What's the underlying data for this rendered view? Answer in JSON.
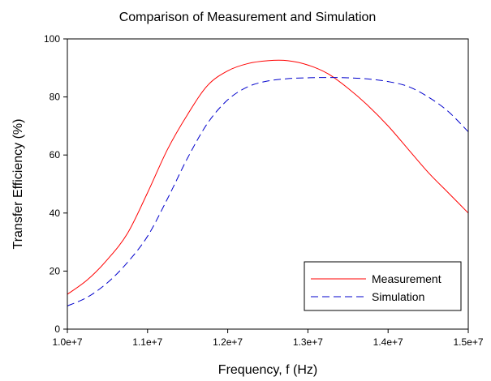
{
  "chart_data": {
    "type": "line",
    "title": "Comparison of Measurement and Simulation",
    "xlabel": "Frequency, f (Hz)",
    "ylabel": "Transfer Efficiency (%)",
    "xlim": [
      10000000,
      15000000
    ],
    "ylim": [
      0,
      100
    ],
    "xticks": [
      10000000,
      11000000,
      12000000,
      13000000,
      14000000,
      15000000
    ],
    "xtick_labels": [
      "1.0e+7",
      "1.1e+7",
      "1.2e+7",
      "1.3e+7",
      "1.4e+7",
      "1.5e+7"
    ],
    "yticks": [
      0,
      20,
      40,
      60,
      80,
      100
    ],
    "ytick_labels": [
      "0",
      "20",
      "40",
      "60",
      "80",
      "100"
    ],
    "grid": false,
    "legend_position": "bottom-right",
    "series": [
      {
        "name": "Measurement",
        "color": "#ff0000",
        "dash": "solid",
        "x": [
          10000000,
          10250000,
          10500000,
          10750000,
          11000000,
          11250000,
          11500000,
          11750000,
          12000000,
          12250000,
          12500000,
          12750000,
          13000000,
          13250000,
          13500000,
          13750000,
          14000000,
          14250000,
          14500000,
          14750000,
          15000000
        ],
        "y": [
          12,
          17,
          24,
          33,
          47,
          62,
          74,
          84,
          89,
          91.5,
          92.5,
          92.5,
          91,
          88,
          83,
          77,
          70,
          62,
          54,
          47,
          40
        ]
      },
      {
        "name": "Simulation",
        "color": "#0000cc",
        "dash": "dashed",
        "x": [
          10000000,
          10250000,
          10500000,
          10750000,
          11000000,
          11250000,
          11500000,
          11750000,
          12000000,
          12250000,
          12500000,
          12750000,
          13000000,
          13250000,
          13500000,
          13750000,
          14000000,
          14250000,
          14500000,
          14750000,
          15000000
        ],
        "y": [
          8,
          11,
          16,
          23,
          32,
          45,
          59,
          71,
          79,
          83.5,
          85.5,
          86.3,
          86.6,
          86.7,
          86.6,
          86.2,
          85.3,
          83.6,
          80,
          75,
          68
        ]
      }
    ]
  }
}
